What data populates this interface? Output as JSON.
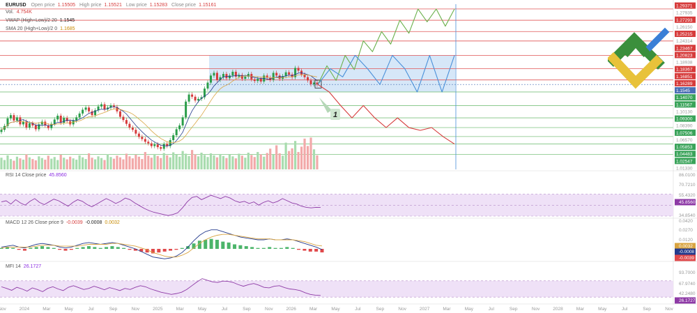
{
  "header": {
    "symbol": "EURUSD",
    "ohlc": [
      {
        "label": "Open price",
        "value": "1.15505"
      },
      {
        "label": "High price",
        "value": "1.15521"
      },
      {
        "label": "Low price",
        "value": "1.15283"
      },
      {
        "label": "Close price",
        "value": "1.15161"
      }
    ],
    "vol_label": "Vol.",
    "vol_value": "4.754K",
    "vwap_label": "VWAP (High+Low)/2 20",
    "vwap_value": "1.1545",
    "sma_label": "SMA 20 (High+Low)/2 0",
    "sma_value": "1.1685"
  },
  "rsi_legend": {
    "label": "RSI 14 Close price",
    "value": "45.8560"
  },
  "macd_legend": {
    "label": "MACD 12 26 Close price 9",
    "v1": "-0.0039",
    "v2": "-0.0008",
    "v3": "0.0032"
  },
  "mfi_legend": {
    "label": "MFI 14",
    "value": "26.1727"
  },
  "pattern_label": "1",
  "colors": {
    "up": "#2a9d4a",
    "down": "#d63b3b",
    "level": "#e05555",
    "zone": "#cfe3f7",
    "bull_path": "#6ab04c",
    "range_path": "#4a90d9",
    "bear_path": "#d63b3b",
    "rsi_band": "#efe1f7",
    "mfi_band": "#efe1f7",
    "osc_line": "#8e3aa6",
    "macd_line": "#243a8c",
    "signal_line": "#d9a441",
    "current": "#4a6fb5",
    "logo_green": "#3b8f3c",
    "logo_blue": "#3a7fd6",
    "logo_yellow": "#e8c23a"
  },
  "chart_data": {
    "type": "line",
    "ylim": [
      1.0,
      1.3
    ],
    "price_axis": [
      {
        "label": "1.29371",
        "style": "red"
      },
      {
        "label": "1.27935",
        "style": "faint"
      },
      {
        "label": "1.27293",
        "style": "red"
      },
      {
        "label": "1.26150",
        "style": "faint"
      },
      {
        "label": "1.25215",
        "style": "red"
      },
      {
        "label": "1.24314",
        "style": "faint"
      },
      {
        "label": "1.23467",
        "style": "red"
      },
      {
        "label": "1.20823",
        "style": "red"
      },
      {
        "label": "1.18938",
        "style": "faint"
      },
      {
        "label": "1.18367",
        "style": "red"
      },
      {
        "label": "1.16851",
        "style": "red"
      },
      {
        "label": "1.16289",
        "style": "red"
      },
      {
        "label": "1.1545",
        "style": "blue"
      },
      {
        "label": "1.14070",
        "style": "green"
      },
      {
        "label": "1.11567",
        "style": "green"
      },
      {
        "label": "1.10130",
        "style": "faint"
      },
      {
        "label": "1.09300",
        "style": "green"
      },
      {
        "label": "1.08390",
        "style": "faint"
      },
      {
        "label": "1.07506",
        "style": "green"
      },
      {
        "label": "1.06570",
        "style": "faint"
      },
      {
        "label": "1.05853",
        "style": "green"
      },
      {
        "label": "1.04483",
        "style": "green"
      },
      {
        "label": "1.02547",
        "style": "green"
      },
      {
        "label": "1.01330",
        "style": "faint"
      }
    ],
    "resistance_levels": [
      1.29371,
      1.27293,
      1.25215,
      1.23467,
      1.20823,
      1.18367,
      1.16289
    ],
    "support_levels": [
      1.1407,
      1.11567,
      1.093,
      1.07506,
      1.05853,
      1.04483,
      1.02547
    ],
    "current_price": 1.1545,
    "x_ticks": [
      "Nov",
      "2024",
      "Mar",
      "May",
      "Jul",
      "Sep",
      "Nov",
      "2025",
      "Mar",
      "May",
      "Jul",
      "Sep",
      "Nov",
      "2026",
      "Mar",
      "May",
      "Jul",
      "Sep",
      "Nov",
      "2027",
      "Mar",
      "May",
      "Jul",
      "Sep",
      "Nov",
      "2028",
      "Mar",
      "May",
      "Jul",
      "Sep",
      "Nov"
    ],
    "price_series": [
      1.071,
      1.078,
      1.092,
      1.098,
      1.088,
      1.094,
      1.081,
      1.086,
      1.075,
      1.083,
      1.079,
      1.072,
      1.081,
      1.086,
      1.079,
      1.074,
      1.082,
      1.09,
      1.097,
      1.084,
      1.093,
      1.087,
      1.081,
      1.088,
      1.094,
      1.101,
      1.108,
      1.112,
      1.105,
      1.098,
      1.107,
      1.114,
      1.118,
      1.109,
      1.112,
      1.116,
      1.113,
      1.105,
      1.095,
      1.089,
      1.082,
      1.075,
      1.071,
      1.064,
      1.058,
      1.054,
      1.049,
      1.046,
      1.041,
      1.044,
      1.039,
      1.036,
      1.045,
      1.041,
      1.052,
      1.061,
      1.072,
      1.079,
      1.094,
      1.123,
      1.136,
      1.132,
      1.125,
      1.128,
      1.131,
      1.147,
      1.158,
      1.171,
      1.176,
      1.163,
      1.168,
      1.174,
      1.166,
      1.171,
      1.178,
      1.169,
      1.172,
      1.165,
      1.169,
      1.174,
      1.164,
      1.161,
      1.165,
      1.16,
      1.171,
      1.167,
      1.163,
      1.176,
      1.171,
      1.165,
      1.17,
      1.177,
      1.173,
      1.168,
      1.185,
      1.18,
      1.173,
      1.168,
      1.162,
      1.155,
      1.158,
      1.1545
    ],
    "volume_series": [
      0.35,
      0.28,
      0.42,
      0.31,
      0.26,
      0.38,
      0.33,
      0.29,
      0.45,
      0.36,
      0.31,
      0.27,
      0.39,
      0.34,
      0.29,
      0.41,
      0.32,
      0.37,
      0.28,
      0.44,
      0.35,
      0.3,
      0.38,
      0.33,
      0.29,
      0.42,
      0.36,
      0.31,
      0.48,
      0.35,
      0.3,
      0.39,
      0.34,
      0.28,
      0.45,
      0.37,
      0.32,
      0.41,
      0.36,
      0.3,
      0.47,
      0.39,
      0.33,
      0.44,
      0.38,
      0.31,
      0.52,
      0.41,
      0.35,
      0.46,
      0.4,
      0.34,
      0.49,
      0.42,
      0.36,
      0.51,
      0.44,
      0.38,
      0.55,
      0.47,
      0.4,
      0.58,
      0.45,
      0.39,
      0.5,
      0.43,
      0.37,
      0.48,
      0.42,
      0.36,
      0.46,
      0.4,
      0.34,
      0.44,
      0.39,
      0.33,
      0.47,
      0.41,
      0.35,
      0.5,
      0.43,
      0.37,
      0.52,
      0.45,
      0.38,
      0.49,
      0.62,
      0.44,
      0.72,
      0.48,
      0.41,
      0.8,
      0.55,
      0.63,
      0.85,
      0.52,
      0.68,
      0.92,
      0.7,
      0.95,
      0.6,
      0.42
    ],
    "consolidation_zone": {
      "top": 1.20823,
      "bottom": 1.1407
    },
    "projection_bull": [
      1.1545,
      1.189,
      1.162,
      1.2082,
      1.182,
      1.235,
      1.215,
      1.252,
      1.229,
      1.2729,
      1.249,
      1.2937,
      1.27,
      1.2937,
      1.262,
      1.2937
    ],
    "projection_range": [
      1.1545,
      1.1837,
      1.1685,
      1.2082,
      1.1837,
      1.1545,
      1.2082,
      1.1837,
      1.1407,
      1.2082,
      1.1407,
      1.2082
    ],
    "projection_bear": [
      1.1545,
      1.1407,
      1.1157,
      1.093,
      1.1157,
      1.093,
      1.0751,
      1.093,
      1.075,
      1.07,
      1.0751,
      1.0585,
      1.0448
    ],
    "rsi": {
      "axis": [
        "86.0100",
        "70.7210",
        "55.4320",
        "45.8560",
        "34.8540"
      ],
      "band": [
        30,
        70
      ],
      "series": [
        56,
        58,
        52,
        60,
        54,
        50,
        57,
        62,
        55,
        51,
        56,
        61,
        58,
        53,
        48,
        55,
        60,
        57,
        51,
        47,
        52,
        57,
        62,
        58,
        53,
        57,
        63,
        60,
        54,
        49,
        44,
        40,
        37,
        35,
        33,
        31,
        33,
        36,
        45,
        56,
        64,
        66,
        60,
        64,
        68,
        65,
        62,
        66,
        63,
        58,
        55,
        57,
        53,
        56,
        50,
        55,
        58,
        54,
        57,
        62,
        58,
        54,
        52,
        48,
        46,
        45,
        46,
        45.856
      ]
    },
    "macd": {
      "axis": [
        "0.0420",
        "0.0270",
        "0.0120",
        "0.0032",
        "-0.0008",
        "-0.0039"
      ],
      "hist": [
        0.001,
        0.002,
        0.001,
        -0.001,
        -0.002,
        0.001,
        0.002,
        0.003,
        0.002,
        0.001,
        -0.001,
        -0.002,
        -0.001,
        0.001,
        0.002,
        0.003,
        0.002,
        0.001,
        0.002,
        0.003,
        0.002,
        0.001,
        -0.001,
        -0.002,
        -0.003,
        -0.004,
        -0.005,
        -0.004,
        -0.003,
        -0.002,
        -0.001,
        0.001,
        0.003,
        0.006,
        0.009,
        0.01,
        0.011,
        0.01,
        0.008,
        0.007,
        0.005,
        0.004,
        0.003,
        0.002,
        0.001,
        0.001,
        0.002,
        0.001,
        0.001,
        0.002,
        0.001,
        -0.001,
        -0.002,
        -0.003,
        -0.003,
        -0.0039
      ],
      "macd_line": [
        0.002,
        0.003,
        0.004,
        0.002,
        0.001,
        0.003,
        0.005,
        0.006,
        0.005,
        0.004,
        0.002,
        0.001,
        0.002,
        0.004,
        0.006,
        0.007,
        0.006,
        0.005,
        0.006,
        0.007,
        0.006,
        0.004,
        0.002,
        0.0,
        -0.003,
        -0.006,
        -0.009,
        -0.01,
        -0.011,
        -0.01,
        -0.008,
        -0.004,
        0.002,
        0.009,
        0.015,
        0.019,
        0.021,
        0.021,
        0.019,
        0.017,
        0.015,
        0.013,
        0.012,
        0.011,
        0.01,
        0.01,
        0.011,
        0.01,
        0.01,
        0.011,
        0.01,
        0.008,
        0.006,
        0.004,
        0.002,
        -0.0008
      ],
      "signal_line": [
        0.001,
        0.002,
        0.002,
        0.002,
        0.002,
        0.002,
        0.003,
        0.004,
        0.004,
        0.004,
        0.003,
        0.003,
        0.003,
        0.003,
        0.004,
        0.005,
        0.005,
        0.005,
        0.005,
        0.006,
        0.006,
        0.005,
        0.004,
        0.003,
        0.001,
        -0.001,
        -0.004,
        -0.006,
        -0.008,
        -0.009,
        -0.009,
        -0.007,
        -0.004,
        0.001,
        0.006,
        0.01,
        0.013,
        0.015,
        0.016,
        0.016,
        0.015,
        0.014,
        0.013,
        0.012,
        0.011,
        0.011,
        0.011,
        0.01,
        0.01,
        0.01,
        0.01,
        0.009,
        0.008,
        0.006,
        0.004,
        0.0032
      ]
    },
    "mfi": {
      "axis": [
        "93.7000",
        "67.9740",
        "42.2480",
        "26.1727"
      ],
      "band": [
        20,
        80
      ],
      "series": [
        58,
        52,
        45,
        56,
        50,
        42,
        54,
        48,
        40,
        52,
        58,
        50,
        44,
        56,
        62,
        55,
        48,
        52,
        60,
        54,
        47,
        55,
        50,
        44,
        52,
        48,
        56,
        62,
        58,
        50,
        44,
        38,
        34,
        30,
        33,
        38,
        48,
        62,
        76,
        88,
        82,
        76,
        74,
        79,
        78,
        74,
        66,
        60,
        66,
        70,
        64,
        56,
        54,
        60,
        62,
        55,
        50,
        48,
        44,
        36,
        30,
        27,
        26.1727
      ]
    }
  }
}
